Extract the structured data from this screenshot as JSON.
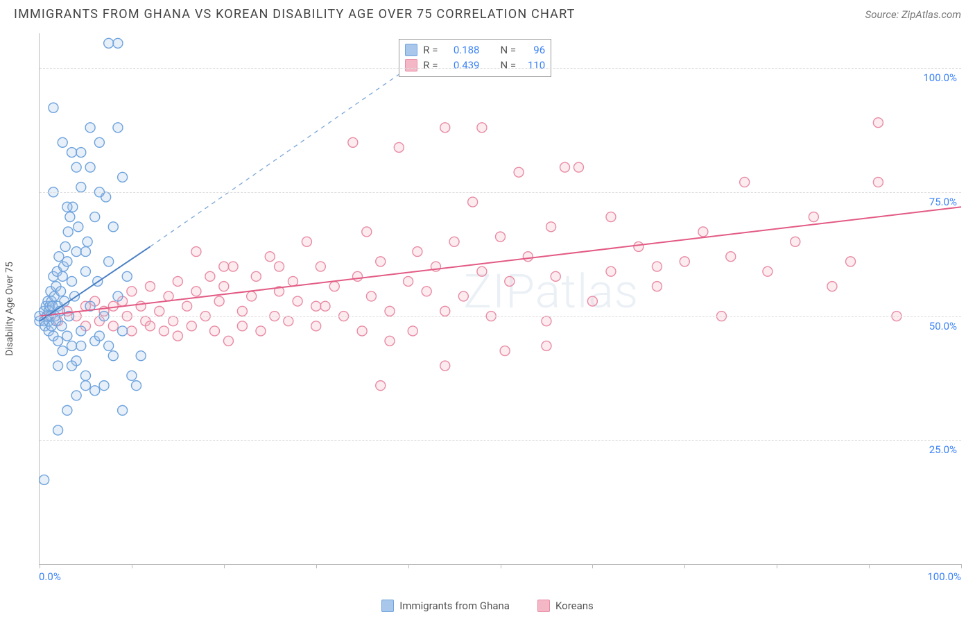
{
  "header": {
    "title": "IMMIGRANTS FROM GHANA VS KOREAN DISABILITY AGE OVER 75 CORRELATION CHART",
    "source_prefix": "Source: ",
    "source_name": "ZipAtlas.com"
  },
  "watermark": "ZIPatlas",
  "chart": {
    "type": "scatter",
    "y_axis_label": "Disability Age Over 75",
    "background_color": "#ffffff",
    "grid_color": "#dddddd",
    "axis_color": "#bbbbbb",
    "xlim": [
      0,
      100
    ],
    "ylim": [
      0,
      107
    ],
    "x_ticks": [
      0,
      10,
      20,
      30,
      40,
      50,
      60,
      70,
      80,
      90,
      100
    ],
    "y_gridlines": [
      {
        "value": 25,
        "label": "25.0%"
      },
      {
        "value": 50,
        "label": "50.0%"
      },
      {
        "value": 75,
        "label": "75.0%"
      },
      {
        "value": 100,
        "label": "100.0%"
      }
    ],
    "x_axis_label_low": "0.0%",
    "x_axis_label_high": "100.0%",
    "x_axis_label_color": "#3b82f6",
    "y_axis_gridlabel_color": "#3b82f6",
    "marker_radius": 7,
    "marker_opacity": 0.28,
    "series": {
      "ghana": {
        "label": "Immigrants from Ghana",
        "color_fill": "#a9c7ea",
        "color_stroke": "#6ea3dd",
        "R_label": "R =",
        "R_value": "0.188",
        "N_label": "N =",
        "N_value": "96",
        "trend_solid": {
          "x1": 0,
          "y1": 49,
          "x2": 12,
          "y2": 64,
          "color": "#4a7fc4"
        },
        "trend_dash": {
          "x1": 12,
          "y1": 64,
          "x2": 40,
          "y2": 100,
          "color": "#7ba6d8"
        },
        "points": [
          [
            0,
            49
          ],
          [
            0,
            50
          ],
          [
            0.5,
            51
          ],
          [
            0.5,
            49
          ],
          [
            0.6,
            48
          ],
          [
            0.7,
            52
          ],
          [
            0.8,
            50
          ],
          [
            0.9,
            53
          ],
          [
            1,
            49
          ],
          [
            1,
            51
          ],
          [
            1,
            47
          ],
          [
            1.1,
            52
          ],
          [
            1.2,
            55
          ],
          [
            1.2,
            50
          ],
          [
            1.3,
            48
          ],
          [
            1.3,
            53
          ],
          [
            1.4,
            52
          ],
          [
            1.5,
            58
          ],
          [
            1.5,
            46
          ],
          [
            1.6,
            54
          ],
          [
            1.7,
            50
          ],
          [
            1.8,
            56
          ],
          [
            1.8,
            49
          ],
          [
            1.9,
            59
          ],
          [
            2,
            52
          ],
          [
            2,
            45
          ],
          [
            2.1,
            62
          ],
          [
            2.2,
            51
          ],
          [
            2.3,
            55
          ],
          [
            2.4,
            48
          ],
          [
            2.5,
            58
          ],
          [
            2.5,
            43
          ],
          [
            2.6,
            60
          ],
          [
            2.7,
            53
          ],
          [
            2.8,
            64
          ],
          [
            3,
            46
          ],
          [
            3,
            61
          ],
          [
            3.1,
            67
          ],
          [
            3.2,
            50
          ],
          [
            3.3,
            70
          ],
          [
            3.5,
            44
          ],
          [
            3.5,
            57
          ],
          [
            3.6,
            72
          ],
          [
            3.8,
            54
          ],
          [
            4,
            63
          ],
          [
            4,
            41
          ],
          [
            4.2,
            68
          ],
          [
            4.5,
            47
          ],
          [
            4.5,
            76
          ],
          [
            5,
            59
          ],
          [
            5,
            38
          ],
          [
            5.2,
            65
          ],
          [
            5.5,
            52
          ],
          [
            5.5,
            80
          ],
          [
            6,
            45
          ],
          [
            6,
            70
          ],
          [
            6.3,
            57
          ],
          [
            6.5,
            85
          ],
          [
            7,
            50
          ],
          [
            7,
            36
          ],
          [
            7.2,
            74
          ],
          [
            7.5,
            61
          ],
          [
            8,
            42
          ],
          [
            8,
            68
          ],
          [
            8.5,
            54
          ],
          [
            8.5,
            88
          ],
          [
            9,
            47
          ],
          [
            9,
            78
          ],
          [
            9.5,
            58
          ],
          [
            10,
            38
          ],
          [
            0.5,
            17
          ],
          [
            2,
            27
          ],
          [
            3,
            31
          ],
          [
            4,
            34
          ],
          [
            5,
            36
          ],
          [
            6,
            35
          ],
          [
            9,
            31
          ],
          [
            7.5,
            105
          ],
          [
            8.5,
            105
          ],
          [
            1.5,
            92
          ],
          [
            3.5,
            83
          ],
          [
            4.5,
            83
          ],
          [
            5.5,
            88
          ],
          [
            4,
            80
          ],
          [
            2.5,
            85
          ],
          [
            1.5,
            75
          ],
          [
            3,
            72
          ],
          [
            6.5,
            75
          ],
          [
            5,
            63
          ],
          [
            10.5,
            36
          ],
          [
            11,
            42
          ],
          [
            2,
            40
          ],
          [
            3.5,
            40
          ],
          [
            4.5,
            44
          ],
          [
            6.5,
            46
          ],
          [
            7.5,
            44
          ]
        ]
      },
      "koreans": {
        "label": "Koreans",
        "color_fill": "#f4b7c6",
        "color_stroke": "#e88ba4",
        "R_label": "R =",
        "R_value": "0.439",
        "N_label": "N =",
        "N_value": "110",
        "trend_solid": {
          "x1": 0,
          "y1": 50,
          "x2": 100,
          "y2": 72,
          "color": "#e35a84"
        },
        "points": [
          [
            1,
            50
          ],
          [
            2,
            49
          ],
          [
            3,
            51
          ],
          [
            4,
            50
          ],
          [
            5,
            52
          ],
          [
            5,
            48
          ],
          [
            6,
            53
          ],
          [
            6.5,
            49
          ],
          [
            7,
            51
          ],
          [
            8,
            52
          ],
          [
            8,
            48
          ],
          [
            9,
            53
          ],
          [
            9.5,
            50
          ],
          [
            10,
            55
          ],
          [
            10,
            47
          ],
          [
            11,
            52
          ],
          [
            11.5,
            49
          ],
          [
            12,
            56
          ],
          [
            12,
            48
          ],
          [
            13,
            51
          ],
          [
            13.5,
            47
          ],
          [
            14,
            54
          ],
          [
            14.5,
            49
          ],
          [
            15,
            57
          ],
          [
            15,
            46
          ],
          [
            16,
            52
          ],
          [
            16.5,
            48
          ],
          [
            17,
            55
          ],
          [
            17,
            63
          ],
          [
            18,
            50
          ],
          [
            18.5,
            58
          ],
          [
            19,
            47
          ],
          [
            19.5,
            53
          ],
          [
            20,
            56
          ],
          [
            20.5,
            45
          ],
          [
            21,
            60
          ],
          [
            22,
            51
          ],
          [
            22,
            48
          ],
          [
            23,
            54
          ],
          [
            23.5,
            58
          ],
          [
            24,
            47
          ],
          [
            25,
            62
          ],
          [
            25.5,
            50
          ],
          [
            26,
            55
          ],
          [
            27,
            49
          ],
          [
            27.5,
            57
          ],
          [
            28,
            53
          ],
          [
            29,
            65
          ],
          [
            30,
            48
          ],
          [
            30.5,
            60
          ],
          [
            31,
            52
          ],
          [
            32,
            56
          ],
          [
            33,
            50
          ],
          [
            34,
            85
          ],
          [
            34.5,
            58
          ],
          [
            35,
            47
          ],
          [
            35.5,
            67
          ],
          [
            36,
            54
          ],
          [
            37,
            61
          ],
          [
            37,
            36
          ],
          [
            38,
            51
          ],
          [
            39,
            84
          ],
          [
            40,
            57
          ],
          [
            40.5,
            47
          ],
          [
            41,
            63
          ],
          [
            42,
            55
          ],
          [
            43,
            60
          ],
          [
            44,
            88
          ],
          [
            44,
            51
          ],
          [
            45,
            65
          ],
          [
            46,
            54
          ],
          [
            47,
            73
          ],
          [
            48,
            59
          ],
          [
            49,
            50
          ],
          [
            50,
            66
          ],
          [
            50.5,
            43
          ],
          [
            51,
            57
          ],
          [
            52,
            79
          ],
          [
            53,
            62
          ],
          [
            55,
            49
          ],
          [
            55.5,
            68
          ],
          [
            56,
            58
          ],
          [
            57,
            80
          ],
          [
            58.5,
            80
          ],
          [
            60,
            53
          ],
          [
            62,
            70
          ],
          [
            62,
            59
          ],
          [
            65,
            64
          ],
          [
            67,
            56
          ],
          [
            70,
            61
          ],
          [
            72,
            67
          ],
          [
            74,
            50
          ],
          [
            75,
            62
          ],
          [
            76.5,
            77
          ],
          [
            79,
            59
          ],
          [
            82,
            65
          ],
          [
            84,
            70
          ],
          [
            86,
            56
          ],
          [
            88,
            61
          ],
          [
            91,
            77
          ],
          [
            93,
            50
          ],
          [
            44,
            40
          ],
          [
            55,
            44
          ],
          [
            38,
            45
          ],
          [
            30,
            52
          ],
          [
            26,
            60
          ],
          [
            91,
            89
          ],
          [
            67,
            60
          ],
          [
            20,
            60
          ],
          [
            48,
            88
          ]
        ]
      }
    },
    "legend_bottom": [
      {
        "series": "ghana"
      },
      {
        "series": "koreans"
      }
    ],
    "stats_box": {
      "left_pct": 39,
      "top_pct": 1
    }
  }
}
